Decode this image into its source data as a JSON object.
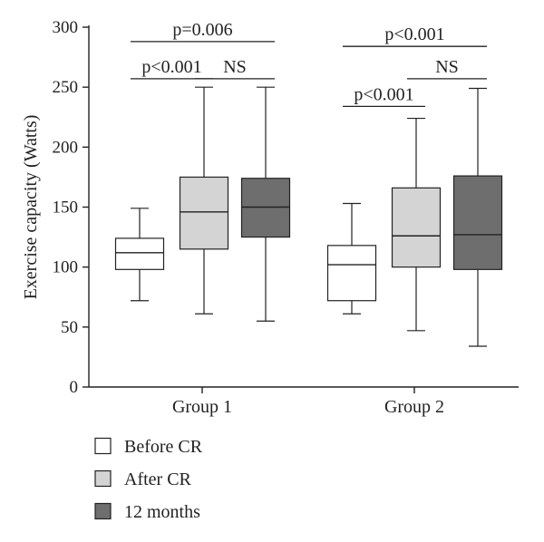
{
  "chart_data": {
    "type": "box",
    "ylabel": "Exercise capacity (Watts)",
    "xlabel": "",
    "ylim": [
      0,
      300
    ],
    "yticks": [
      0,
      50,
      100,
      150,
      200,
      250,
      300
    ],
    "categories": [
      "Group 1",
      "Group 2"
    ],
    "series": [
      {
        "name": "Before CR",
        "color": "#ffffff",
        "boxes": [
          {
            "category": "Group 1",
            "min": 72,
            "q1": 98,
            "median": 112,
            "q3": 124,
            "max": 149
          },
          {
            "category": "Group 2",
            "min": 61,
            "q1": 72,
            "median": 102,
            "q3": 118,
            "max": 153
          }
        ]
      },
      {
        "name": "After CR",
        "color": "#d4d4d4",
        "boxes": [
          {
            "category": "Group 1",
            "min": 61,
            "q1": 115,
            "median": 146,
            "q3": 175,
            "max": 250
          },
          {
            "category": "Group 2",
            "min": 47,
            "q1": 100,
            "median": 126,
            "q3": 166,
            "max": 224
          }
        ]
      },
      {
        "name": "12 months",
        "color": "#6e6e6e",
        "boxes": [
          {
            "category": "Group 1",
            "min": 55,
            "q1": 125,
            "median": 150,
            "q3": 174,
            "max": 250
          },
          {
            "category": "Group 2",
            "min": 34,
            "q1": 98,
            "median": 127,
            "q3": 176,
            "max": 249
          }
        ]
      }
    ],
    "annotations": [
      {
        "text": "p=0.006",
        "category": "Group 1",
        "from_series": 0,
        "to_series": 2,
        "y": 288
      },
      {
        "text": "p<0.001",
        "category": "Group 1",
        "from_series": 0,
        "to_series": 1,
        "y": 257
      },
      {
        "text": "NS",
        "category": "Group 1",
        "from_series": 1,
        "to_series": 2,
        "y": 257
      },
      {
        "text": "p<0.001",
        "category": "Group 2",
        "from_series": 0,
        "to_series": 2,
        "y": 284
      },
      {
        "text": "NS",
        "category": "Group 2",
        "from_series": 1,
        "to_series": 2,
        "y": 257
      },
      {
        "text": "p<0.001",
        "category": "Group 2",
        "from_series": 0,
        "to_series": 1,
        "y": 234
      }
    ],
    "legend": {
      "placement": "bottom-left",
      "items": [
        "Before CR",
        "After CR",
        "12 months"
      ]
    },
    "grid": false
  }
}
